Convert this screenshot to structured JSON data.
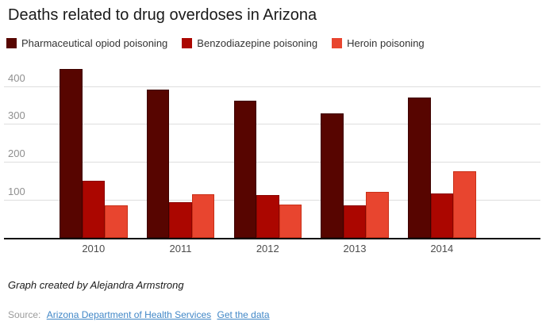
{
  "title": "Deaths related to drug overdoses in Arizona",
  "chart_data": {
    "type": "bar",
    "title": "Deaths related to drug overdoses in Arizona",
    "categories": [
      "2010",
      "2011",
      "2012",
      "2013",
      "2014"
    ],
    "series": [
      {
        "name": "Pharmaceutical opiod poisoning",
        "color": "#570500",
        "border": "#3d0300",
        "values": [
          445,
          390,
          362,
          327,
          370
        ]
      },
      {
        "name": "Benzodiazepine poisoning",
        "color": "#ab0600",
        "border": "#8a0400",
        "values": [
          150,
          95,
          113,
          86,
          118
        ]
      },
      {
        "name": "Heroin poisoning",
        "color": "#e8452f",
        "border": "#c93018",
        "values": [
          85,
          116,
          87,
          122,
          175
        ]
      }
    ],
    "xlabel": "",
    "ylabel": "",
    "yticks": [
      100,
      200,
      300,
      400
    ],
    "ylim": [
      0,
      460
    ],
    "grid": true,
    "legend_position": "top"
  },
  "footer": {
    "credit": "Graph created by Alejandra Armstrong",
    "source_label": "Source:",
    "source_link_label": "Arizona Department of Health Services",
    "data_link_label": "Get the data"
  },
  "colors": {
    "grid": "#dedede",
    "axis": "#111111",
    "ytick_text": "#8f8f8f",
    "xtick_text": "#4d4d4d",
    "link": "#4187c7"
  }
}
